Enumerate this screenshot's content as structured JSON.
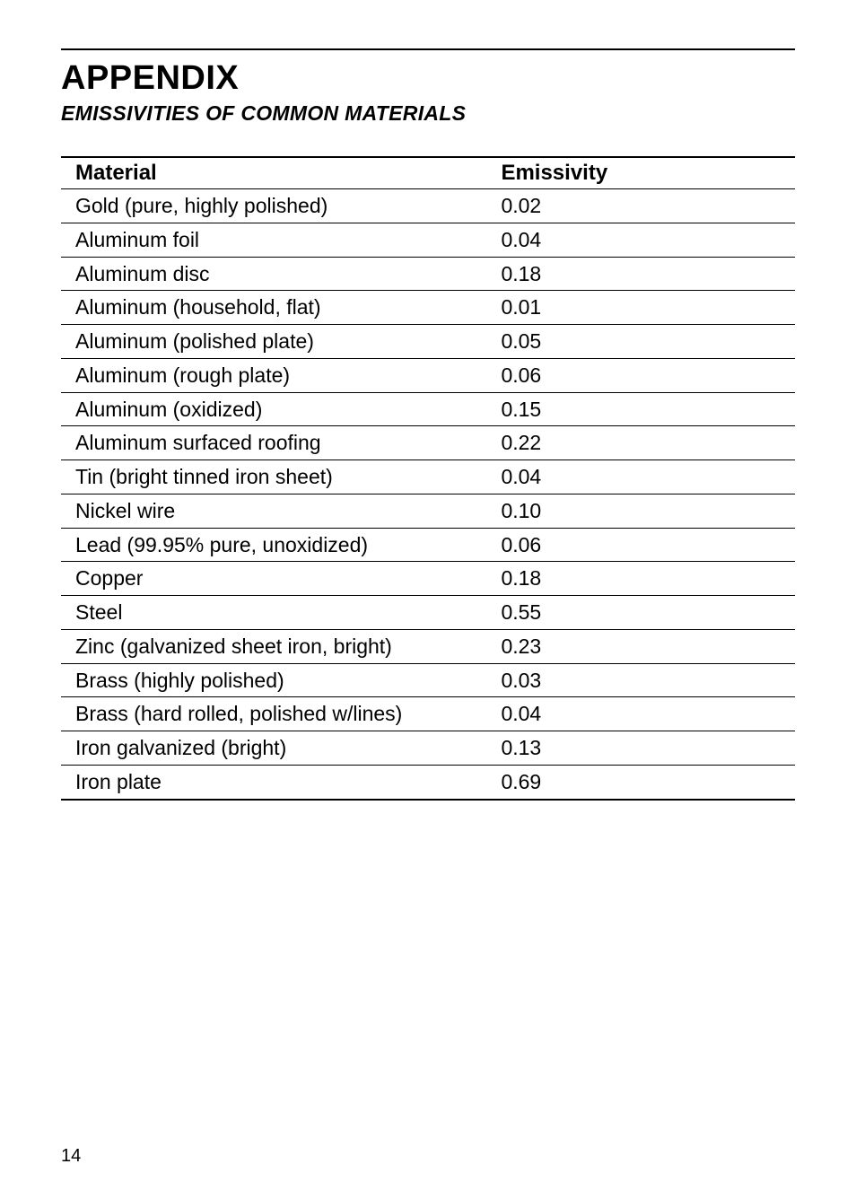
{
  "heading": "APPENDIX",
  "subheading": "EMISSIVITIES OF COMMON MATERIALS",
  "columns": {
    "c0": "Material",
    "c1": "Emissivity"
  },
  "rows": [
    {
      "material": "Gold (pure, highly polished)",
      "emissivity": "0.02"
    },
    {
      "material": "Aluminum foil",
      "emissivity": "0.04"
    },
    {
      "material": "Aluminum disc",
      "emissivity": "0.18"
    },
    {
      "material": "Aluminum (household, flat)",
      "emissivity": "0.01"
    },
    {
      "material": "Aluminum (polished plate)",
      "emissivity": "0.05"
    },
    {
      "material": "Aluminum (rough plate)",
      "emissivity": "0.06"
    },
    {
      "material": "Aluminum (oxidized)",
      "emissivity": "0.15"
    },
    {
      "material": "Aluminum surfaced roofing",
      "emissivity": "0.22"
    },
    {
      "material": "Tin (bright tinned iron sheet)",
      "emissivity": "0.04"
    },
    {
      "material": "Nickel wire",
      "emissivity": "0.10"
    },
    {
      "material": "Lead (99.95% pure, unoxidized)",
      "emissivity": "0.06"
    },
    {
      "material": "Copper",
      "emissivity": "0.18"
    },
    {
      "material": "Steel",
      "emissivity": "0.55"
    },
    {
      "material": "Zinc (galvanized sheet iron, bright)",
      "emissivity": "0.23"
    },
    {
      "material": "Brass (highly polished)",
      "emissivity": "0.03"
    },
    {
      "material": "Brass (hard rolled, polished w/lines)",
      "emissivity": "0.04"
    },
    {
      "material": "Iron galvanized (bright)",
      "emissivity": "0.13"
    },
    {
      "material": "Iron plate",
      "emissivity": "0.69"
    }
  ],
  "page_number": "14"
}
